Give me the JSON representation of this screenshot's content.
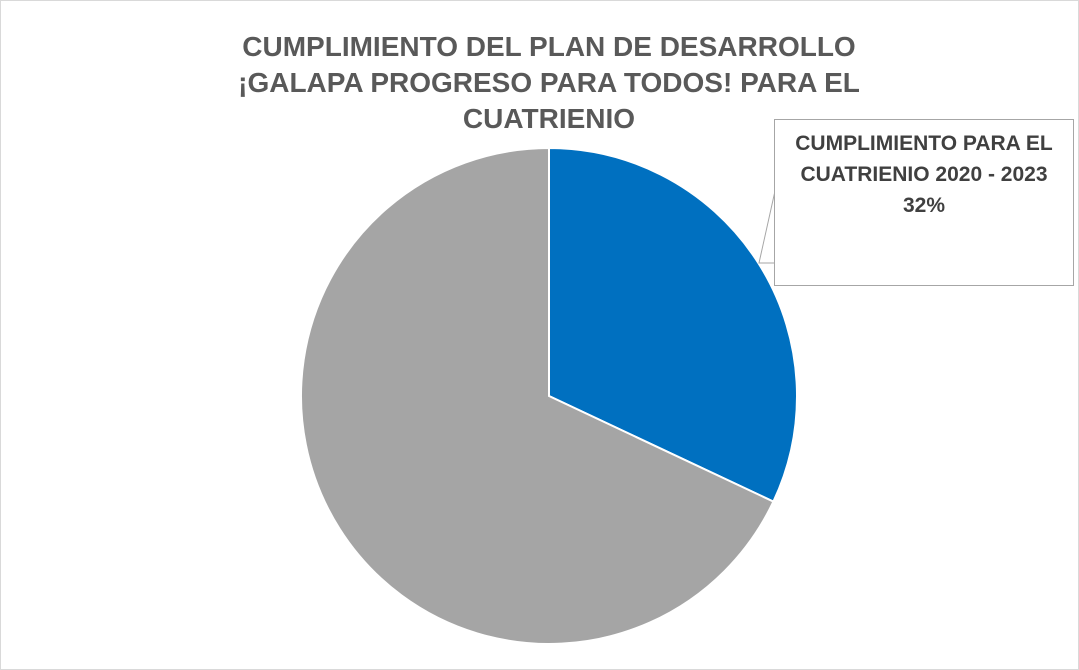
{
  "chart_data": {
    "type": "pie",
    "title": "CUMPLIMIENTO DEL PLAN DE DESARROLLO ¡GALAPA PROGRESO PARA TODOS! PARA EL CUATRIENIO",
    "categories": [
      "CUMPLIMIENTO PARA EL CUATRIENIO 2020 - 2023",
      null
    ],
    "values": [
      32,
      68
    ],
    "value_labels": [
      "32%",
      null
    ],
    "colors": [
      "#0070c0",
      "#a5a5a5"
    ]
  }
}
